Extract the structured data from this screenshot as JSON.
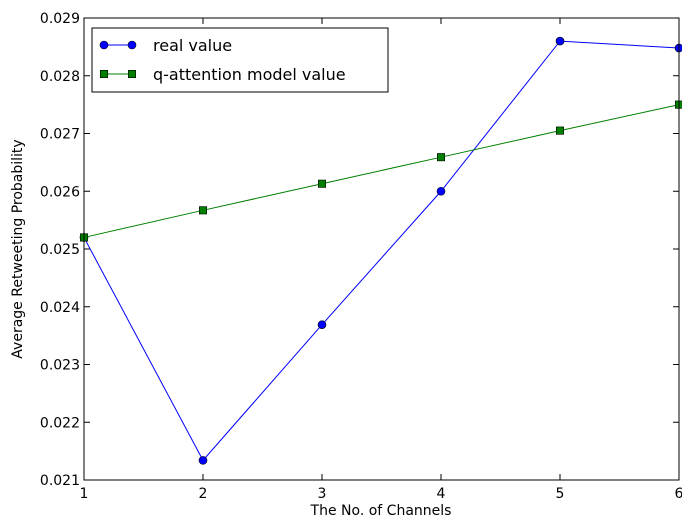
{
  "chart_data": {
    "type": "line",
    "x": [
      1,
      2,
      3,
      4,
      5,
      6
    ],
    "xlabel": "The No. of Channels",
    "ylabel": "Average Retweeting Probability",
    "xlim": [
      1,
      6
    ],
    "ylim": [
      0.021,
      0.029
    ],
    "x_ticks": [
      "1",
      "2",
      "3",
      "4",
      "5",
      "6"
    ],
    "y_ticks": [
      "0.021",
      "0.022",
      "0.023",
      "0.024",
      "0.025",
      "0.026",
      "0.027",
      "0.028",
      "0.029"
    ],
    "grid": false,
    "legend_position": "top-left",
    "series": [
      {
        "name": "real value",
        "values": [
          0.0252,
          0.02134,
          0.02369,
          0.026,
          0.0286,
          0.02848
        ],
        "color": "#0000ff",
        "marker": "circle",
        "marker_color": "#0000ff"
      },
      {
        "name": "q-attention model value",
        "values": [
          0.0252,
          0.02567,
          0.02613,
          0.02659,
          0.02705,
          0.0275
        ],
        "color": "#007f00",
        "marker": "square",
        "marker_color": "#007f00"
      }
    ]
  }
}
